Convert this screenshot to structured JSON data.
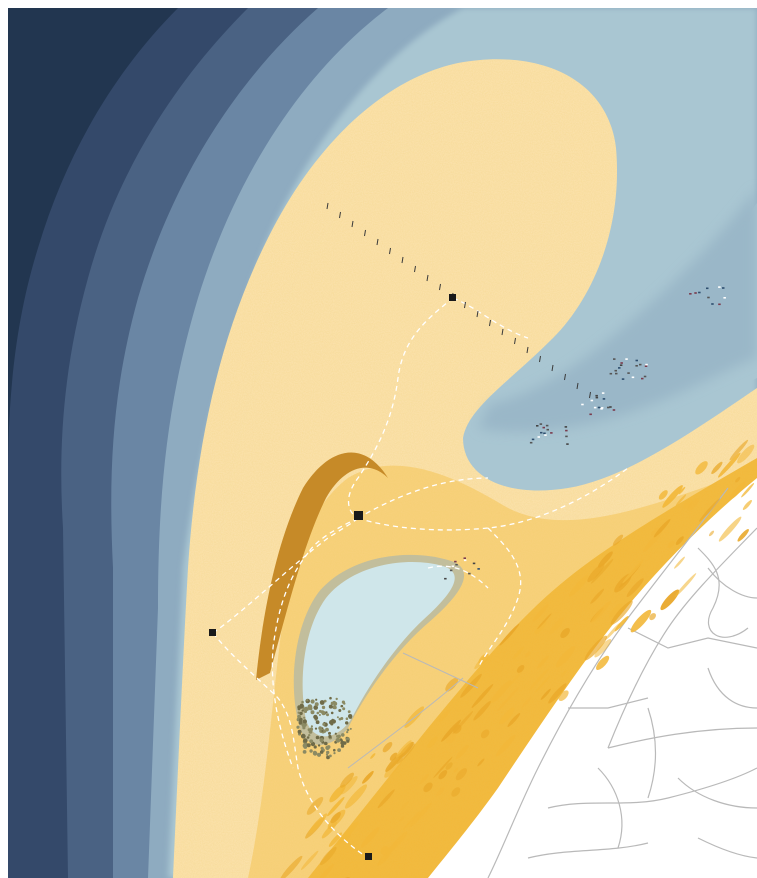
{
  "map": {
    "colors": {
      "deep_sea": "#223650",
      "sea_1": "#34496a",
      "sea_2": "#4a6283",
      "sea_3": "#6a86a4",
      "sea_4": "#8eabc0",
      "shallow_sea": "#a9c6d2",
      "lagoon_water": "#cfe6ea",
      "sand_light": "#fbe3b0",
      "sand_mid": "#f7cf79",
      "sand_deep": "#f2b83a",
      "dune_band": "#c68a28",
      "forest": "#6f6b48",
      "land": "#ffffff",
      "roads": "#b9b9b9",
      "path": "#ffffff",
      "marker": "#1a1a1a"
    },
    "features": [
      "open-sea-gradient",
      "sand-hook-spit",
      "inner-bay",
      "lagoon-lake",
      "dune-ridge",
      "shoreline-strip",
      "mainland-road-network",
      "dashed-footpaths",
      "boardwalk-marker-line",
      "square-markers",
      "boat-cluster"
    ],
    "marker_icon": "square-marker-icon",
    "boat_icon": "boat-icon",
    "pole_icon": "pole-icon"
  }
}
